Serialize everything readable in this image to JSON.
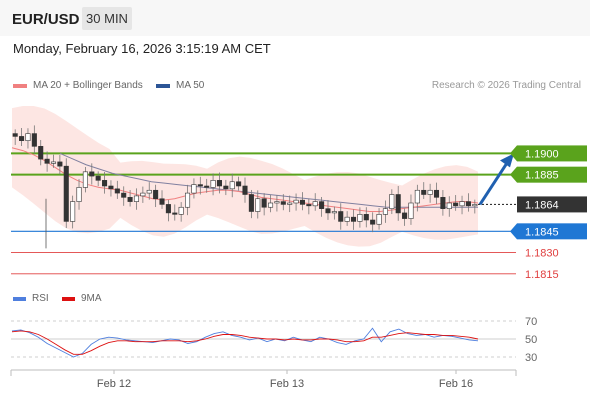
{
  "header": {
    "symbol": "EUR/USD",
    "timeframe": "30 MIN",
    "datetime": "Monday, February 16, 2026 3:15:19 AM CET"
  },
  "legend": {
    "ma20_label": "MA 20 + Bollinger Bands",
    "ma20_color": "#f08080",
    "ma50_label": "MA 50",
    "ma50_color": "#2c5596",
    "credit": "Research © 2026 Trading Central"
  },
  "rsi_legend": {
    "rsi_label": "RSI",
    "rsi_color": "#4f7fde",
    "ma_label": "9MA",
    "ma_color": "#dd1111"
  },
  "chart_data": {
    "type": "candlestick",
    "x_ticks": [
      "Feb 12",
      "Feb 13",
      "Feb 16"
    ],
    "price_range": [
      1.1805,
      1.1925
    ],
    "current_price": "1.1864",
    "levels": [
      {
        "value": 1.19,
        "label": "1.1900",
        "color": "#5aa31c",
        "kind": "resistance",
        "badge": true
      },
      {
        "value": 1.1885,
        "label": "1.1885",
        "color": "#5aa31c",
        "kind": "resistance",
        "badge": true
      },
      {
        "value": 1.1845,
        "label": "1.1845",
        "color": "#1f77d4",
        "kind": "pivot",
        "badge": true
      },
      {
        "value": 1.183,
        "label": "1.1830",
        "color": "#e04040",
        "kind": "support",
        "badge": false
      },
      {
        "value": 1.1815,
        "label": "1.1815",
        "color": "#e04040",
        "kind": "support",
        "badge": false
      }
    ],
    "forecast": {
      "from": 1.1864,
      "to": 1.19,
      "color": "#2060b0"
    },
    "price_series": [
      1.1912,
      1.1909,
      1.1914,
      1.1905,
      1.1896,
      1.1893,
      1.1894,
      1.1891,
      1.1852,
      1.1866,
      1.1876,
      1.1887,
      1.1884,
      1.1881,
      1.1877,
      1.1875,
      1.1872,
      1.1869,
      1.1866,
      1.187,
      1.1872,
      1.1874,
      1.1868,
      1.1864,
      1.1858,
      1.1857,
      1.1862,
      1.1872,
      1.1878,
      1.1877,
      1.1876,
      1.1881,
      1.1877,
      1.1875,
      1.188,
      1.1877,
      1.1871,
      1.1859,
      1.1868,
      1.1862,
      1.1865,
      1.1866,
      1.1864,
      1.1865,
      1.1867,
      1.1864,
      1.1863,
      1.1866,
      1.1861,
      1.1858,
      1.1859,
      1.1852,
      1.1855,
      1.1852,
      1.1857,
      1.1853,
      1.185,
      1.1857,
      1.1861,
      1.1871,
      1.1858,
      1.1854,
      1.1865,
      1.1874,
      1.1871,
      1.1874,
      1.1869,
      1.1861,
      1.1865,
      1.1863,
      1.1866,
      1.1863,
      1.1864
    ],
    "ma20_series": [
      1.1904,
      1.1902,
      1.1899,
      1.1895,
      1.189,
      1.1885,
      1.1881,
      1.1878,
      1.1876,
      1.1875,
      1.1874,
      1.1872,
      1.187,
      1.1868,
      1.1867,
      1.1868,
      1.187,
      1.1872,
      1.1873,
      1.1874,
      1.1874,
      1.1873,
      1.1871,
      1.1869,
      1.1868,
      1.1867,
      1.1866,
      1.1865,
      1.1864,
      1.1863,
      1.1862,
      1.1861,
      1.186,
      1.1859,
      1.1859,
      1.186,
      1.1861,
      1.1862,
      1.1863,
      1.1864,
      1.1865,
      1.1866,
      1.1866,
      1.1865
    ],
    "ma50_series": [
      1.19,
      1.1896,
      1.1892,
      1.1889,
      1.1886,
      1.1884,
      1.1882,
      1.188,
      1.1879,
      1.1878,
      1.1877,
      1.1876,
      1.1875,
      1.1874,
      1.1873,
      1.1872,
      1.1871,
      1.187,
      1.1869,
      1.1868,
      1.1867,
      1.1866,
      1.1865,
      1.1864,
      1.1863,
      1.1862,
      1.1862,
      1.1862,
      1.1862,
      1.1862,
      1.1862,
      1.1862,
      1.1862
    ],
    "rsi": {
      "levels": [
        "70",
        "50",
        "30"
      ],
      "range": [
        20,
        80
      ],
      "rsi_series": [
        59,
        60,
        57,
        52,
        45,
        40,
        35,
        30,
        34,
        44,
        50,
        52,
        51,
        49,
        48,
        47,
        46,
        48,
        50,
        49,
        45,
        47,
        52,
        56,
        58,
        54,
        52,
        49,
        51,
        47,
        50,
        48,
        52,
        49,
        47,
        52,
        50,
        46,
        44,
        48,
        50,
        62,
        47,
        58,
        61,
        56,
        54,
        55,
        52,
        54,
        53,
        51,
        49,
        48
      ],
      "ma_series": [
        58,
        59,
        58,
        55,
        50,
        44,
        38,
        33,
        33,
        37,
        42,
        46,
        48,
        48,
        47,
        47,
        47,
        48,
        48,
        48,
        47,
        48,
        50,
        53,
        55,
        55,
        54,
        52,
        51,
        50,
        50,
        49,
        50,
        49,
        49,
        50,
        50,
        49,
        47,
        47,
        48,
        52,
        52,
        54,
        56,
        57,
        56,
        55,
        55,
        54,
        54,
        53,
        52,
        50
      ]
    }
  }
}
